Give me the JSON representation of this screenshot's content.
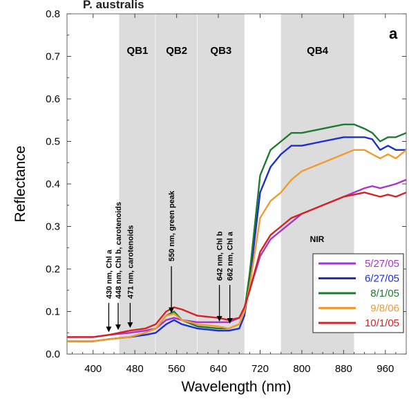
{
  "chart_data": {
    "type": "line",
    "title": "",
    "panel_label": "a",
    "top_text": "P. australis",
    "xlabel": "Wavelength (nm)",
    "ylabel": "Reflectance",
    "xlim": [
      350,
      1000
    ],
    "ylim": [
      0.0,
      0.8
    ],
    "x_ticks": [
      400,
      480,
      560,
      640,
      720,
      800,
      880,
      960
    ],
    "y_ticks": [
      "0.0",
      "0.1",
      "0.2",
      "0.3",
      "0.4",
      "0.5",
      "0.6",
      "0.7",
      "0.8"
    ],
    "grid": false,
    "legend_position": "bottom-right",
    "bands": [
      {
        "name": "QB1",
        "range": [
          450,
          520
        ]
      },
      {
        "name": "QB2",
        "range": [
          520,
          600
        ]
      },
      {
        "name": "QB3",
        "range": [
          600,
          690
        ]
      },
      {
        "name": "QB4",
        "range": [
          760,
          900
        ]
      }
    ],
    "nir_label": "NIR",
    "annotations": [
      {
        "text": "430 nm, Chl a",
        "x": 430
      },
      {
        "text": "448 nm, Chl b, carotenoids",
        "x": 448
      },
      {
        "text": "471 nm, carotenoids",
        "x": 471
      },
      {
        "text": "550 nm, green peak",
        "x": 550
      },
      {
        "text": "642 nm, Chl b",
        "x": 642
      },
      {
        "text": "662 nm, Chl a",
        "x": 662
      }
    ],
    "series": [
      {
        "name": "5/27/05",
        "color": "#a833cc",
        "x": [
          350,
          400,
          430,
          470,
          500,
          520,
          540,
          555,
          570,
          600,
          640,
          660,
          680,
          690,
          700,
          720,
          740,
          760,
          780,
          800,
          840,
          880,
          900,
          920,
          935,
          950,
          965,
          980,
          1000
        ],
        "y": [
          0.04,
          0.04,
          0.045,
          0.05,
          0.055,
          0.06,
          0.08,
          0.085,
          0.08,
          0.075,
          0.075,
          0.075,
          0.085,
          0.11,
          0.15,
          0.23,
          0.27,
          0.29,
          0.31,
          0.33,
          0.35,
          0.37,
          0.38,
          0.39,
          0.395,
          0.39,
          0.395,
          0.4,
          0.41
        ]
      },
      {
        "name": "6/27/05",
        "color": "#1a2ed6",
        "x": [
          350,
          400,
          430,
          470,
          500,
          520,
          540,
          555,
          570,
          600,
          640,
          660,
          680,
          690,
          700,
          720,
          740,
          760,
          780,
          800,
          840,
          880,
          900,
          920,
          935,
          950,
          965,
          980,
          1000
        ],
        "y": [
          0.03,
          0.03,
          0.035,
          0.04,
          0.045,
          0.05,
          0.07,
          0.08,
          0.07,
          0.06,
          0.055,
          0.055,
          0.06,
          0.09,
          0.17,
          0.38,
          0.44,
          0.47,
          0.49,
          0.49,
          0.5,
          0.51,
          0.51,
          0.51,
          0.505,
          0.48,
          0.49,
          0.48,
          0.48
        ]
      },
      {
        "name": "8/1/05",
        "color": "#1e7a2e",
        "x": [
          350,
          400,
          430,
          470,
          500,
          520,
          540,
          555,
          570,
          600,
          640,
          660,
          680,
          690,
          700,
          720,
          740,
          760,
          780,
          800,
          840,
          880,
          900,
          920,
          935,
          950,
          965,
          980,
          1000
        ],
        "y": [
          0.03,
          0.03,
          0.035,
          0.04,
          0.05,
          0.06,
          0.09,
          0.1,
          0.08,
          0.065,
          0.06,
          0.06,
          0.07,
          0.1,
          0.19,
          0.42,
          0.48,
          0.5,
          0.52,
          0.52,
          0.53,
          0.54,
          0.54,
          0.53,
          0.52,
          0.5,
          0.51,
          0.51,
          0.52
        ]
      },
      {
        "name": "9/8/06",
        "color": "#f29a2e",
        "x": [
          350,
          400,
          430,
          470,
          500,
          520,
          540,
          555,
          570,
          600,
          640,
          660,
          680,
          690,
          700,
          720,
          740,
          760,
          780,
          800,
          840,
          880,
          900,
          920,
          935,
          950,
          965,
          980,
          1000
        ],
        "y": [
          0.03,
          0.03,
          0.035,
          0.04,
          0.05,
          0.06,
          0.09,
          0.095,
          0.08,
          0.07,
          0.065,
          0.06,
          0.07,
          0.1,
          0.16,
          0.32,
          0.36,
          0.38,
          0.41,
          0.43,
          0.45,
          0.47,
          0.48,
          0.48,
          0.47,
          0.46,
          0.47,
          0.46,
          0.48
        ]
      },
      {
        "name": "10/1/05",
        "color": "#d82020",
        "x": [
          350,
          400,
          430,
          470,
          500,
          520,
          540,
          555,
          570,
          600,
          640,
          660,
          680,
          690,
          700,
          720,
          740,
          760,
          780,
          800,
          840,
          880,
          900,
          920,
          935,
          950,
          965,
          980,
          1000
        ],
        "y": [
          0.04,
          0.04,
          0.045,
          0.055,
          0.06,
          0.07,
          0.1,
          0.11,
          0.105,
          0.09,
          0.085,
          0.08,
          0.085,
          0.11,
          0.15,
          0.24,
          0.28,
          0.3,
          0.32,
          0.33,
          0.35,
          0.37,
          0.375,
          0.38,
          0.375,
          0.37,
          0.375,
          0.37,
          0.38
        ]
      }
    ]
  }
}
